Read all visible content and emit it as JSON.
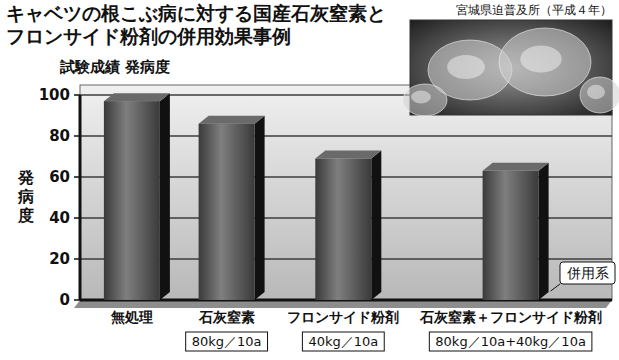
{
  "chart_data": {
    "type": "bar",
    "title": "キャベツの根こぶ病に対する国産石灰窒素とフロンサイド粉剤の併用効果事例",
    "source": "宮城県迫普及所（平成４年）",
    "subtitle": "試験成績 発病度",
    "y_label": "発病度",
    "categories": [
      "無処理",
      "石灰窒素",
      "フロンサイド粉剤",
      "石灰窒素＋フロンサイド粉剤"
    ],
    "values": [
      97,
      86,
      69,
      63
    ],
    "category_notes": [
      null,
      "80kg／10a",
      "40kg／10a",
      "80kg／10a+40kg／10a"
    ],
    "annotations": [
      "併用系"
    ],
    "color": "#3a3a3a",
    "ylim": [
      0,
      100
    ],
    "yticks": [
      0,
      20,
      40,
      60,
      80,
      100
    ],
    "grid": true
  }
}
